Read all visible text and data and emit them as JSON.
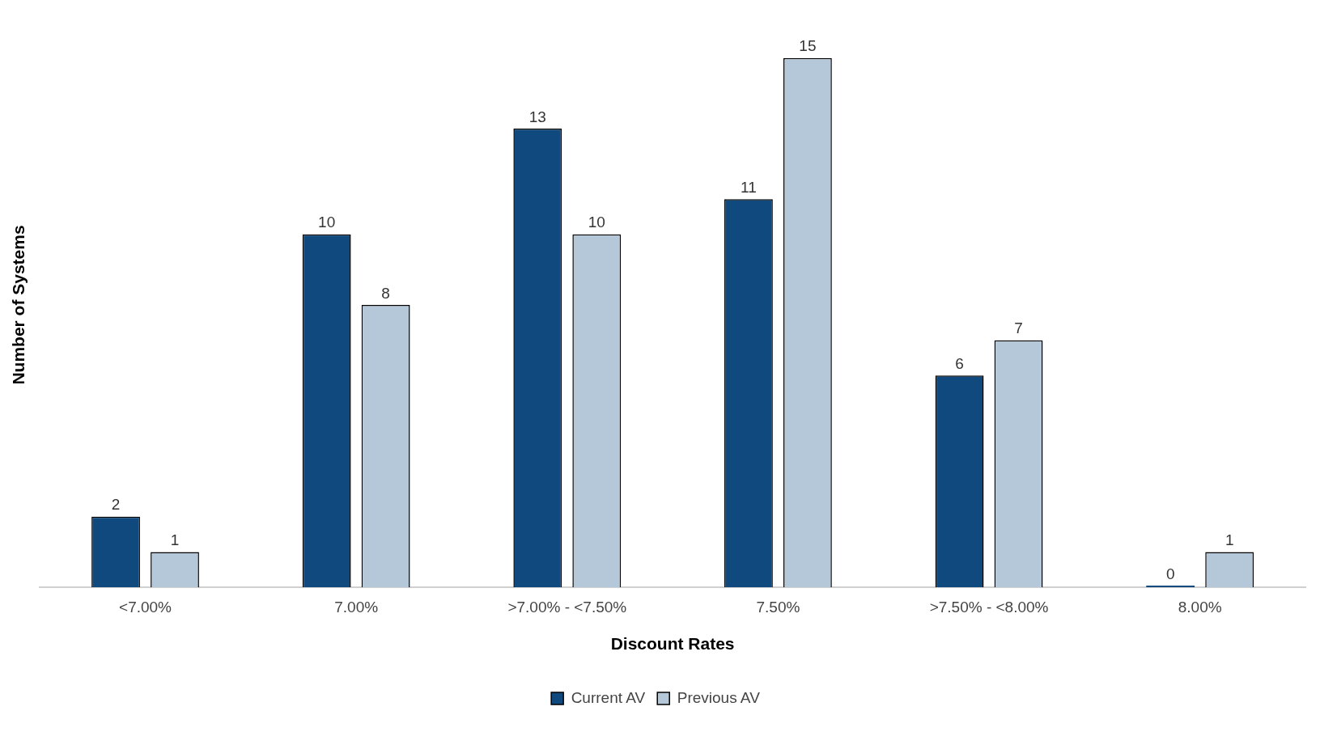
{
  "chart_data": {
    "type": "bar",
    "xlabel": "Discount Rates",
    "ylabel": "Number of Systems",
    "categories": [
      "<7.00%",
      "7.00%",
      ">7.00% - <7.50%",
      "7.50%",
      ">7.50% - <8.00%",
      "8.00%"
    ],
    "series": [
      {
        "name": "Current AV",
        "color": "#0f497e",
        "values": [
          2,
          10,
          13,
          11,
          6,
          0
        ]
      },
      {
        "name": "Previous AV",
        "color": "#b5c8da",
        "values": [
          1,
          8,
          10,
          15,
          7,
          1
        ]
      }
    ],
    "data_labels": true,
    "grid": false,
    "legend": "bottom"
  }
}
